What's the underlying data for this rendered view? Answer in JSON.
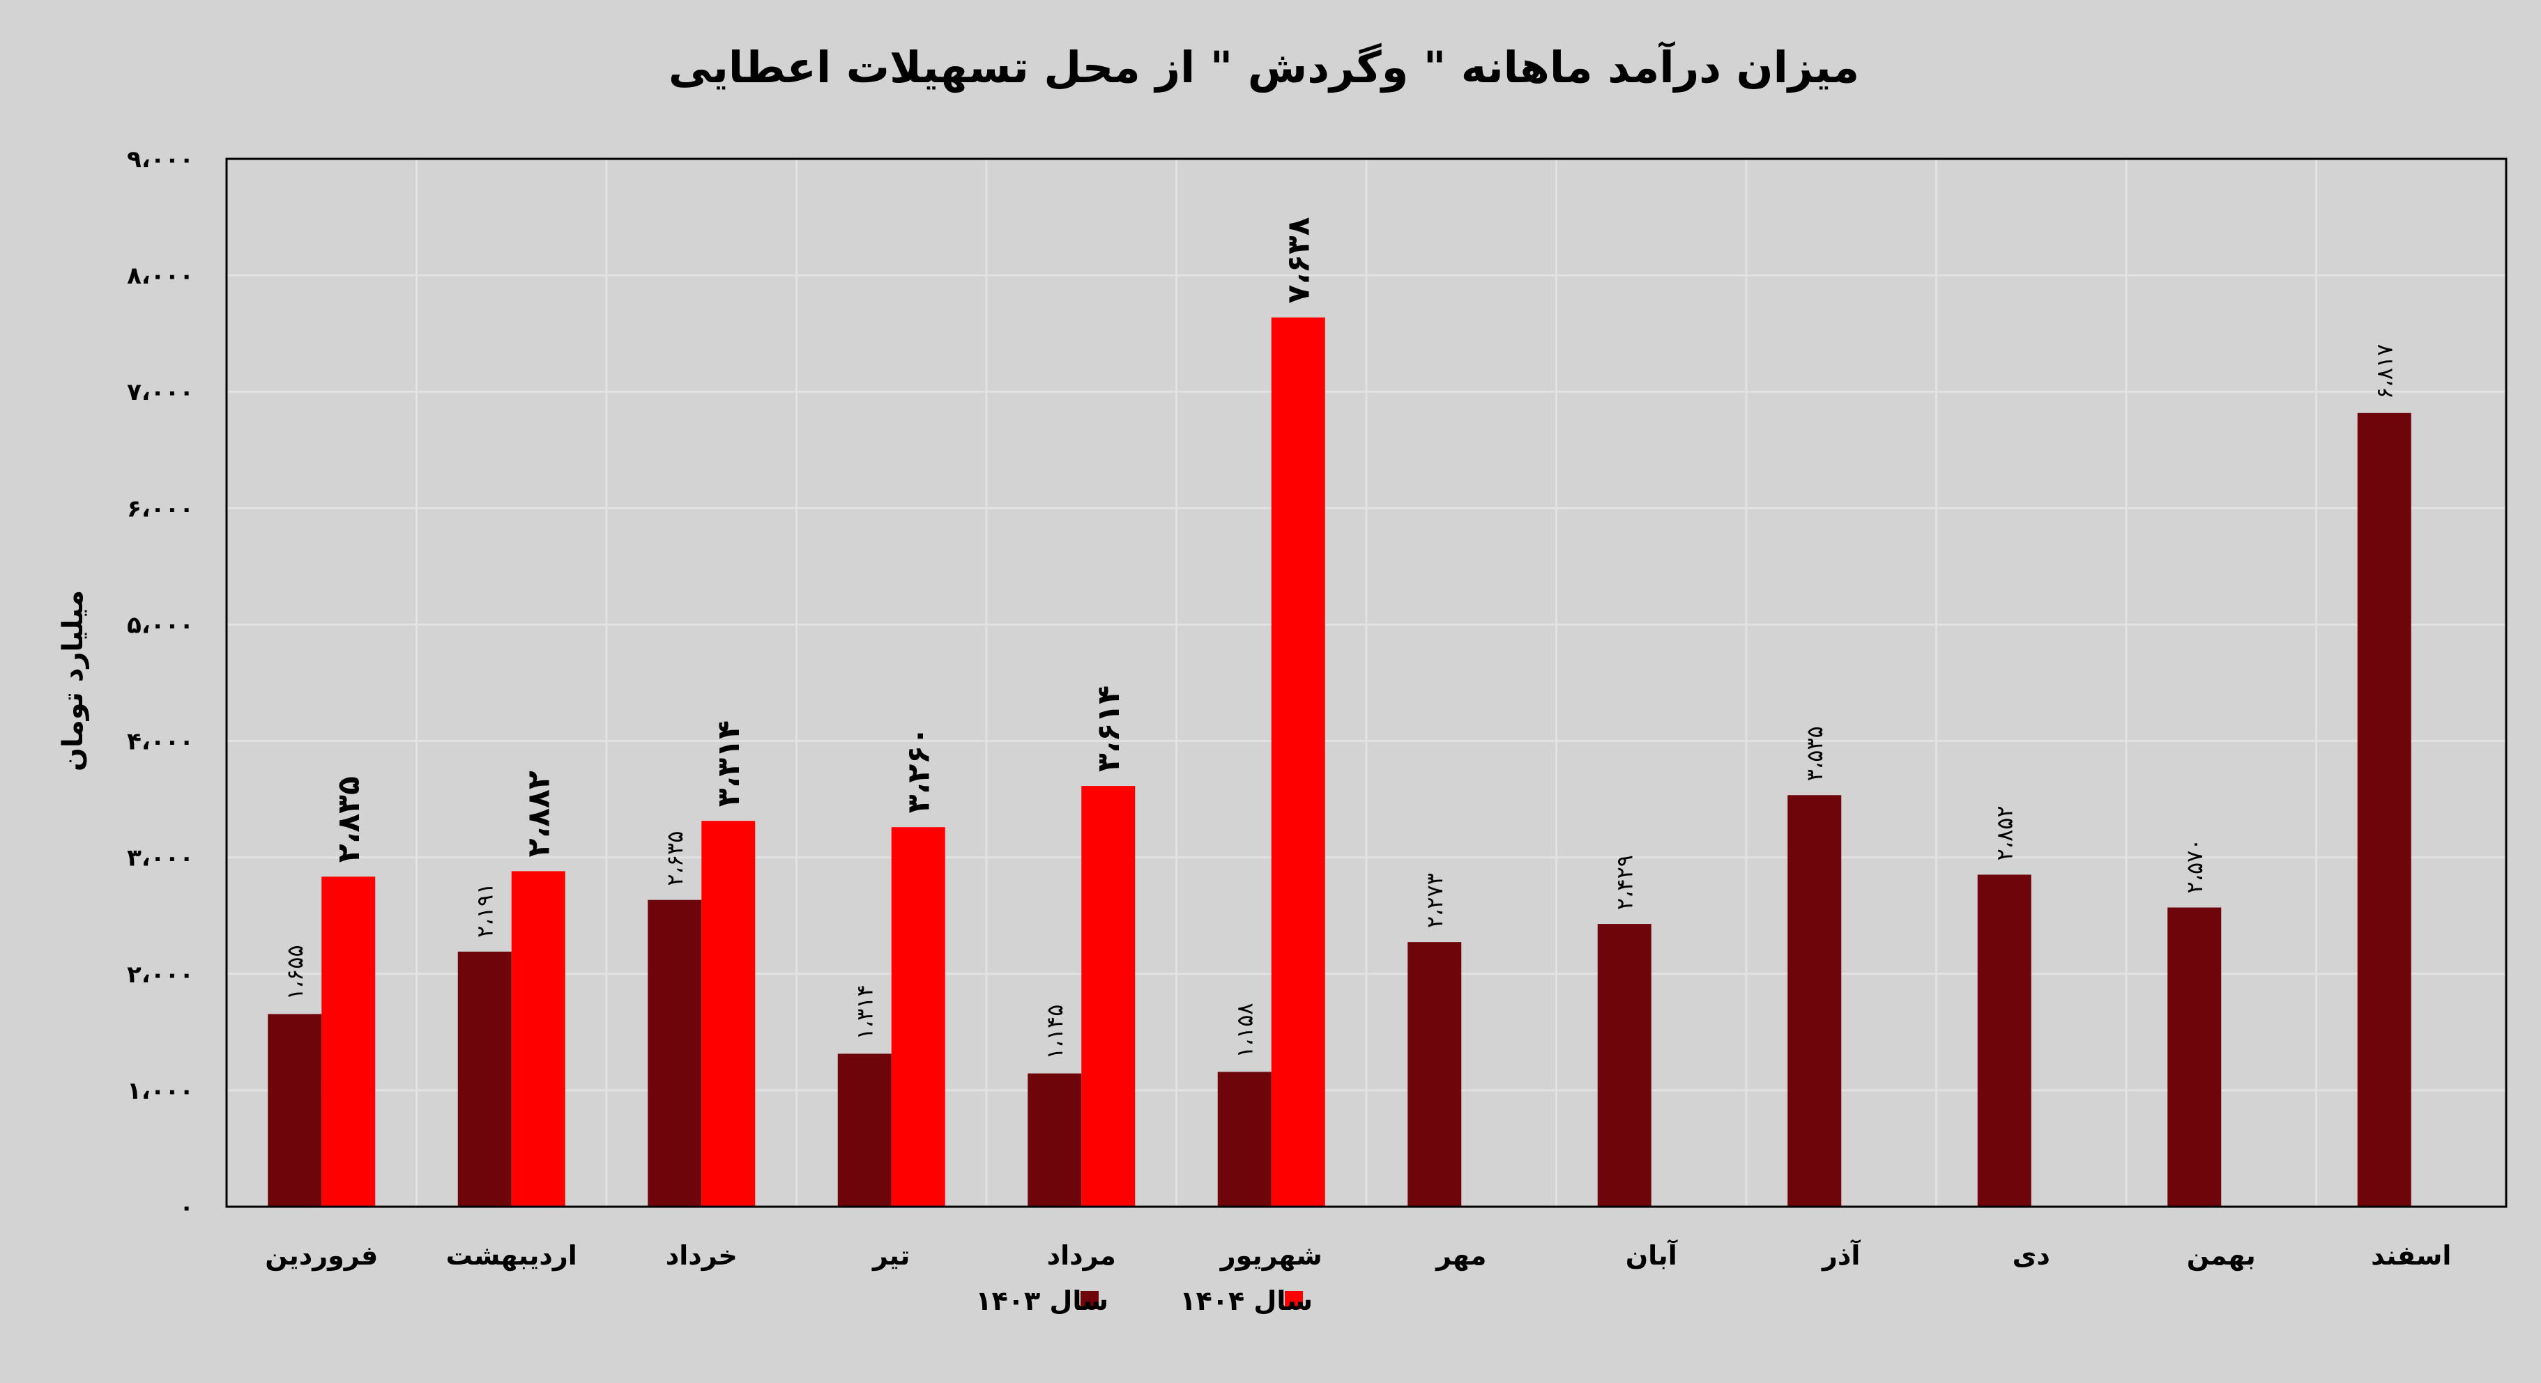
{
  "chart_data": {
    "type": "bar",
    "title": "میزان درآمد ماهانه \" وگردش \" از محل تسهیلات اعطایی",
    "xlabel": "",
    "ylabel": "میلیارد تومان",
    "ylim": [
      0,
      9000
    ],
    "grid": true,
    "legend_position": "bottom",
    "categories": [
      "فروردین",
      "اردیبهشت",
      "خرداد",
      "تیر",
      "مرداد",
      "شهریور",
      "مهر",
      "آبان",
      "آذر",
      "دی",
      "بهمن",
      "اسفند"
    ],
    "yticks": [
      0,
      1000,
      2000,
      3000,
      4000,
      5000,
      6000,
      7000,
      8000,
      9000
    ],
    "ytick_labels": [
      "۰",
      "۱،۰۰۰",
      "۲،۰۰۰",
      "۳،۰۰۰",
      "۴،۰۰۰",
      "۵،۰۰۰",
      "۶،۰۰۰",
      "۷،۰۰۰",
      "۸،۰۰۰",
      "۹،۰۰۰"
    ],
    "series": [
      {
        "name": "سال ۱۴۰۳",
        "color": "#6e050b",
        "values": [
          1655,
          2191,
          2635,
          1314,
          1145,
          1158,
          2273,
          2429,
          3535,
          2852,
          2570,
          6817
        ],
        "labels": [
          "۱،۶۵۵",
          "۲،۱۹۱",
          "۲،۶۳۵",
          "۱،۳۱۴",
          "۱،۱۴۵",
          "۱،۱۵۸",
          "۲،۲۷۳",
          "۲،۴۲۹",
          "۳،۵۳۵",
          "۲،۸۵۲",
          "۲،۵۷۰",
          "۶،۸۱۷"
        ]
      },
      {
        "name": "سال ۱۴۰۴",
        "color": "#ff0000",
        "values": [
          2835,
          2882,
          3314,
          3260,
          3614,
          7638,
          null,
          null,
          null,
          null,
          null,
          null
        ],
        "labels": [
          "۲،۸۳۵",
          "۲،۸۸۲",
          "۳،۳۱۴",
          "۳،۲۶۰",
          "۳،۶۱۴",
          "۷،۶۳۸",
          null,
          null,
          null,
          null,
          null,
          null
        ]
      }
    ]
  }
}
